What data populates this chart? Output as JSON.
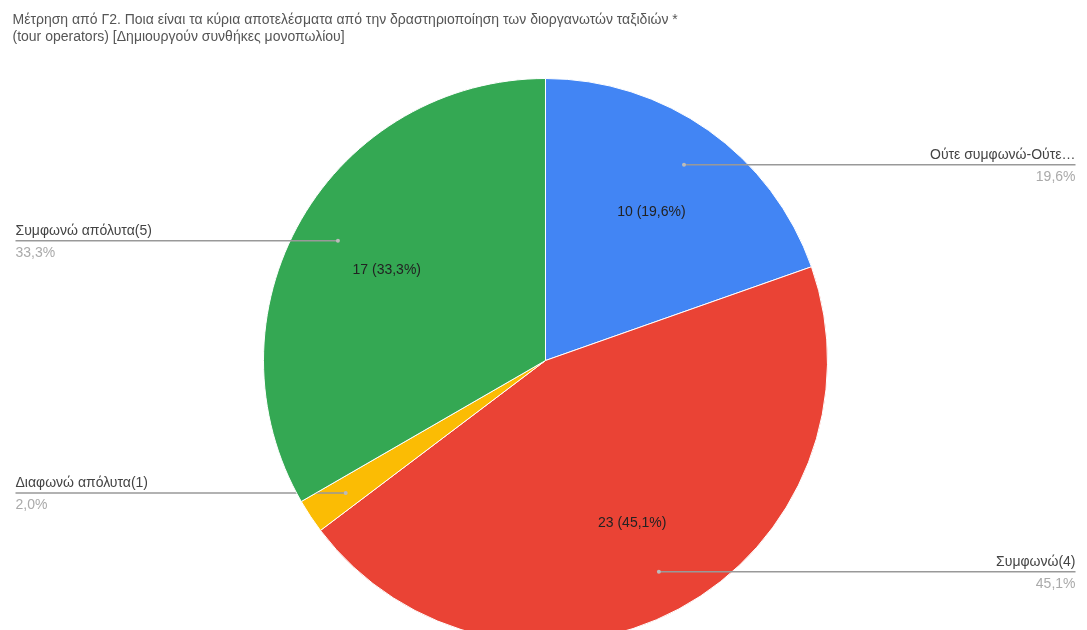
{
  "chart_data": {
    "type": "pie",
    "title": "Μέτρηση από Γ2. Ποια είναι τα κύρια αποτελέσματα από την δραστηριοποίηση των διοργανωτών ταξιδιών *\n(tour operators)  [Δημιουργούν συνθήκες μονοπωλίου]",
    "categories": [
      "Ούτε συμφωνώ-Ούτε…",
      "Συμφωνώ(4)",
      "Διαφωνώ απόλυτα(1)",
      "Συμφωνώ απόλυτα(5)"
    ],
    "values": [
      10,
      23,
      1,
      17
    ],
    "colors": [
      "#4285f4",
      "#ea4335",
      "#fbbc04",
      "#34a853"
    ],
    "value_labels": [
      "10 (19,6%)",
      "23 (45,1%)",
      null,
      "17 (33,3%)"
    ],
    "annotations": [
      "19,6%",
      "45,1%",
      "2,0%",
      "33,3%"
    ]
  }
}
